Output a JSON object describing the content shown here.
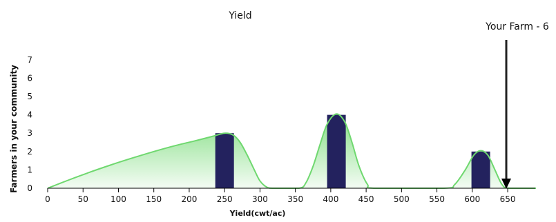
{
  "chart_data": {
    "type": "bar",
    "title": "Yield",
    "xlabel": "Yield(cwt/ac)",
    "ylabel": "Farmers in your community",
    "xlim": [
      0,
      690
    ],
    "ylim": [
      0,
      7
    ],
    "x_ticks": [
      0,
      50,
      100,
      150,
      200,
      250,
      300,
      350,
      400,
      450,
      500,
      550,
      600,
      650
    ],
    "y_ticks": [
      0,
      1,
      2,
      3,
      4,
      5,
      6,
      7
    ],
    "bars": [
      {
        "x": 250,
        "value": 3
      },
      {
        "x": 408,
        "value": 4
      },
      {
        "x": 612,
        "value": 2
      }
    ],
    "curve": [
      [
        0,
        0
      ],
      [
        30,
        0.45
      ],
      [
        60,
        0.88
      ],
      [
        90,
        1.28
      ],
      [
        120,
        1.65
      ],
      [
        150,
        2.0
      ],
      [
        180,
        2.32
      ],
      [
        210,
        2.6
      ],
      [
        235,
        2.85
      ],
      [
        250,
        3.0
      ],
      [
        262,
        2.9
      ],
      [
        272,
        2.5
      ],
      [
        282,
        1.8
      ],
      [
        292,
        1.0
      ],
      [
        300,
        0.4
      ],
      [
        310,
        0.05
      ],
      [
        320,
        0
      ],
      [
        355,
        0
      ],
      [
        365,
        0.3
      ],
      [
        375,
        1.2
      ],
      [
        385,
        2.4
      ],
      [
        395,
        3.5
      ],
      [
        408,
        4.05
      ],
      [
        420,
        3.6
      ],
      [
        430,
        2.5
      ],
      [
        440,
        1.2
      ],
      [
        452,
        0.2
      ],
      [
        462,
        0
      ],
      [
        560,
        0
      ],
      [
        575,
        0.2
      ],
      [
        590,
        1.0
      ],
      [
        602,
        1.8
      ],
      [
        612,
        2.05
      ],
      [
        622,
        1.8
      ],
      [
        632,
        1.0
      ],
      [
        642,
        0.2
      ],
      [
        652,
        0
      ],
      [
        690,
        0
      ]
    ],
    "marker": {
      "label": "Your Farm - 6",
      "x": 648
    },
    "colors": {
      "bar": "#23225e",
      "curve": "#6fd86f",
      "fill": "#6fd86f",
      "marker": "#222222"
    }
  }
}
